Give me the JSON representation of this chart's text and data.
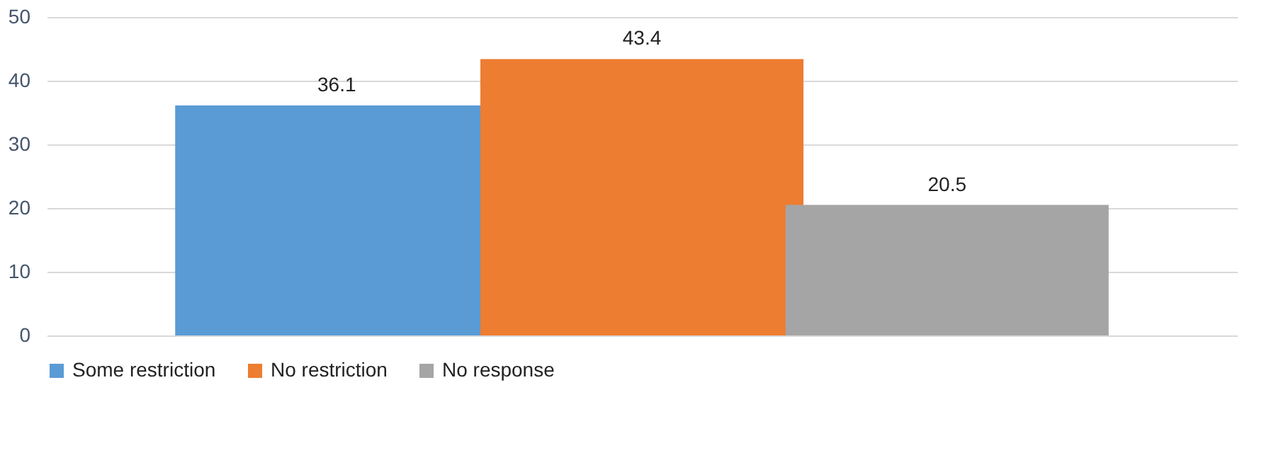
{
  "chart_data": {
    "type": "bar",
    "categories": [
      null,
      null,
      null
    ],
    "series": [
      {
        "name": "Some restriction",
        "color": "#5b9bd5",
        "values": [
          36.1,
          null,
          null
        ]
      },
      {
        "name": "No restriction",
        "color": "#ed7d31",
        "values": [
          null,
          43.4,
          null
        ]
      },
      {
        "name": "No response",
        "color": "#a5a5a5",
        "values": [
          null,
          null,
          20.5
        ]
      }
    ],
    "ylim": [
      0,
      50
    ],
    "yticks": [
      0,
      10,
      20,
      30,
      40,
      50
    ],
    "grid": "y",
    "legend": "bottom",
    "tick_labels": "y",
    "data_labels": true
  }
}
